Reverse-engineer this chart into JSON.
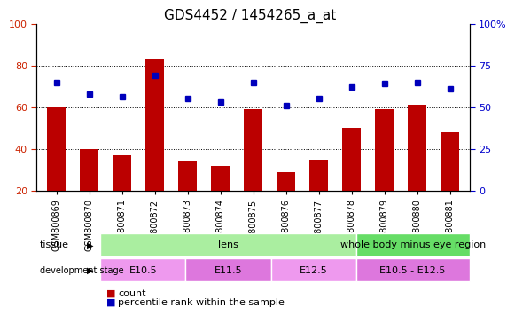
{
  "title": "GDS4452 / 1454265_a_at",
  "samples": [
    "GSM800869",
    "GSM800870",
    "GSM800871",
    "GSM800872",
    "GSM800873",
    "GSM800874",
    "GSM800875",
    "GSM800876",
    "GSM800877",
    "GSM800878",
    "GSM800879",
    "GSM800880",
    "GSM800881"
  ],
  "counts": [
    60,
    40,
    37,
    83,
    34,
    32,
    59,
    29,
    35,
    50,
    59,
    61,
    48
  ],
  "percentiles": [
    65,
    58,
    56,
    69,
    55,
    53,
    65,
    51,
    55,
    62,
    64,
    65,
    61
  ],
  "ylim_left": [
    20,
    100
  ],
  "ylim_right": [
    0,
    100
  ],
  "yticks_left": [
    20,
    40,
    60,
    80,
    100
  ],
  "ytick_labels_left": [
    "20",
    "40",
    "60",
    "80",
    "100"
  ],
  "yticks_right": [
    0,
    25,
    50,
    75,
    100
  ],
  "ytick_labels_right": [
    "0",
    "25",
    "50",
    "75",
    "100%"
  ],
  "bar_color": "#bb0000",
  "dot_color": "#0000bb",
  "tissue_groups": [
    {
      "label": "lens",
      "start": 0,
      "end": 9,
      "color": "#aaeea a"
    },
    {
      "label": "whole body minus eye region",
      "start": 9,
      "end": 13,
      "color": "#66dd66"
    }
  ],
  "dev_stage_groups": [
    {
      "label": "E10.5",
      "start": 0,
      "end": 3,
      "color": "#ee99ee"
    },
    {
      "label": "E11.5",
      "start": 3,
      "end": 6,
      "color": "#dd77dd"
    },
    {
      "label": "E12.5",
      "start": 6,
      "end": 9,
      "color": "#ee99ee"
    },
    {
      "label": "E10.5 - E12.5",
      "start": 9,
      "end": 13,
      "color": "#dd77dd"
    }
  ],
  "legend_count_label": "count",
  "legend_pct_label": "percentile rank within the sample",
  "left_axis_color": "#cc2200",
  "right_axis_color": "#0000cc"
}
